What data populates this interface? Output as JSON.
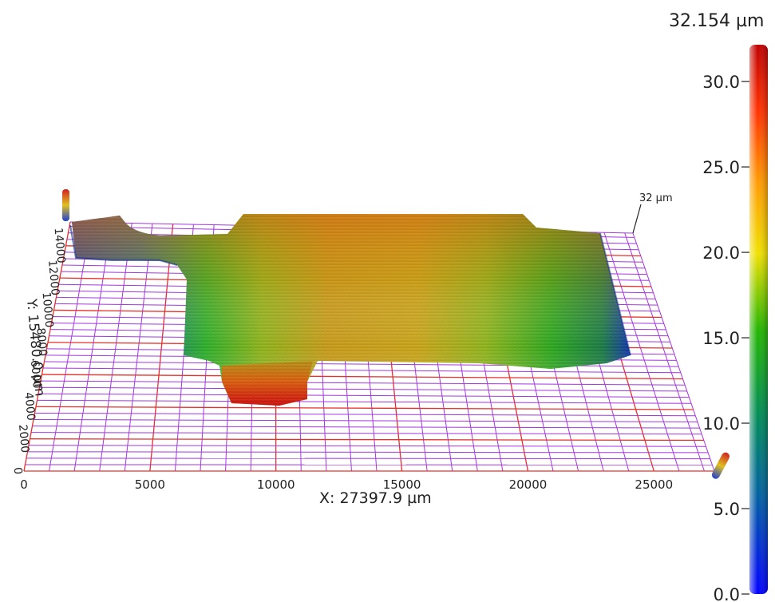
{
  "chart_data": {
    "type": "heatmap",
    "subtype": "3d-surface-profilometry",
    "x_axis": {
      "label": "X: 27397.9 µm",
      "range": [
        0,
        27397.9
      ],
      "ticks": [
        0,
        5000,
        10000,
        15000,
        20000,
        25000
      ],
      "tick_labels": [
        "0",
        "5000",
        "10000",
        "15000",
        "20000",
        "25000"
      ]
    },
    "y_axis": {
      "label": "Y: 15480.0 µm",
      "range": [
        0,
        15480.0
      ],
      "ticks": [
        0,
        2000,
        4000,
        6000,
        8000,
        10000,
        12000,
        14000
      ],
      "tick_labels": [
        "0",
        "2000",
        "4000",
        "6000",
        "8000",
        "10000",
        "12000",
        "14000"
      ]
    },
    "z_axis": {
      "label": "32 µm",
      "max": 32
    },
    "colorbar": {
      "title": "32.154 µm",
      "range": [
        0,
        32.154
      ],
      "ticks": [
        0,
        5,
        10,
        15,
        20,
        25,
        30
      ],
      "tick_labels": [
        "0.0",
        "5.0",
        "10.0",
        "15.0",
        "20.0",
        "25.0",
        "30.0"
      ],
      "colormap": [
        "#0000ff",
        "#008c8c",
        "#00aa00",
        "#ffee00",
        "#ff8800",
        "#dd0000"
      ],
      "placement": "right"
    },
    "grid": true,
    "grid_colors": {
      "major": "#e8302a",
      "minor": "#a437e0"
    }
  }
}
